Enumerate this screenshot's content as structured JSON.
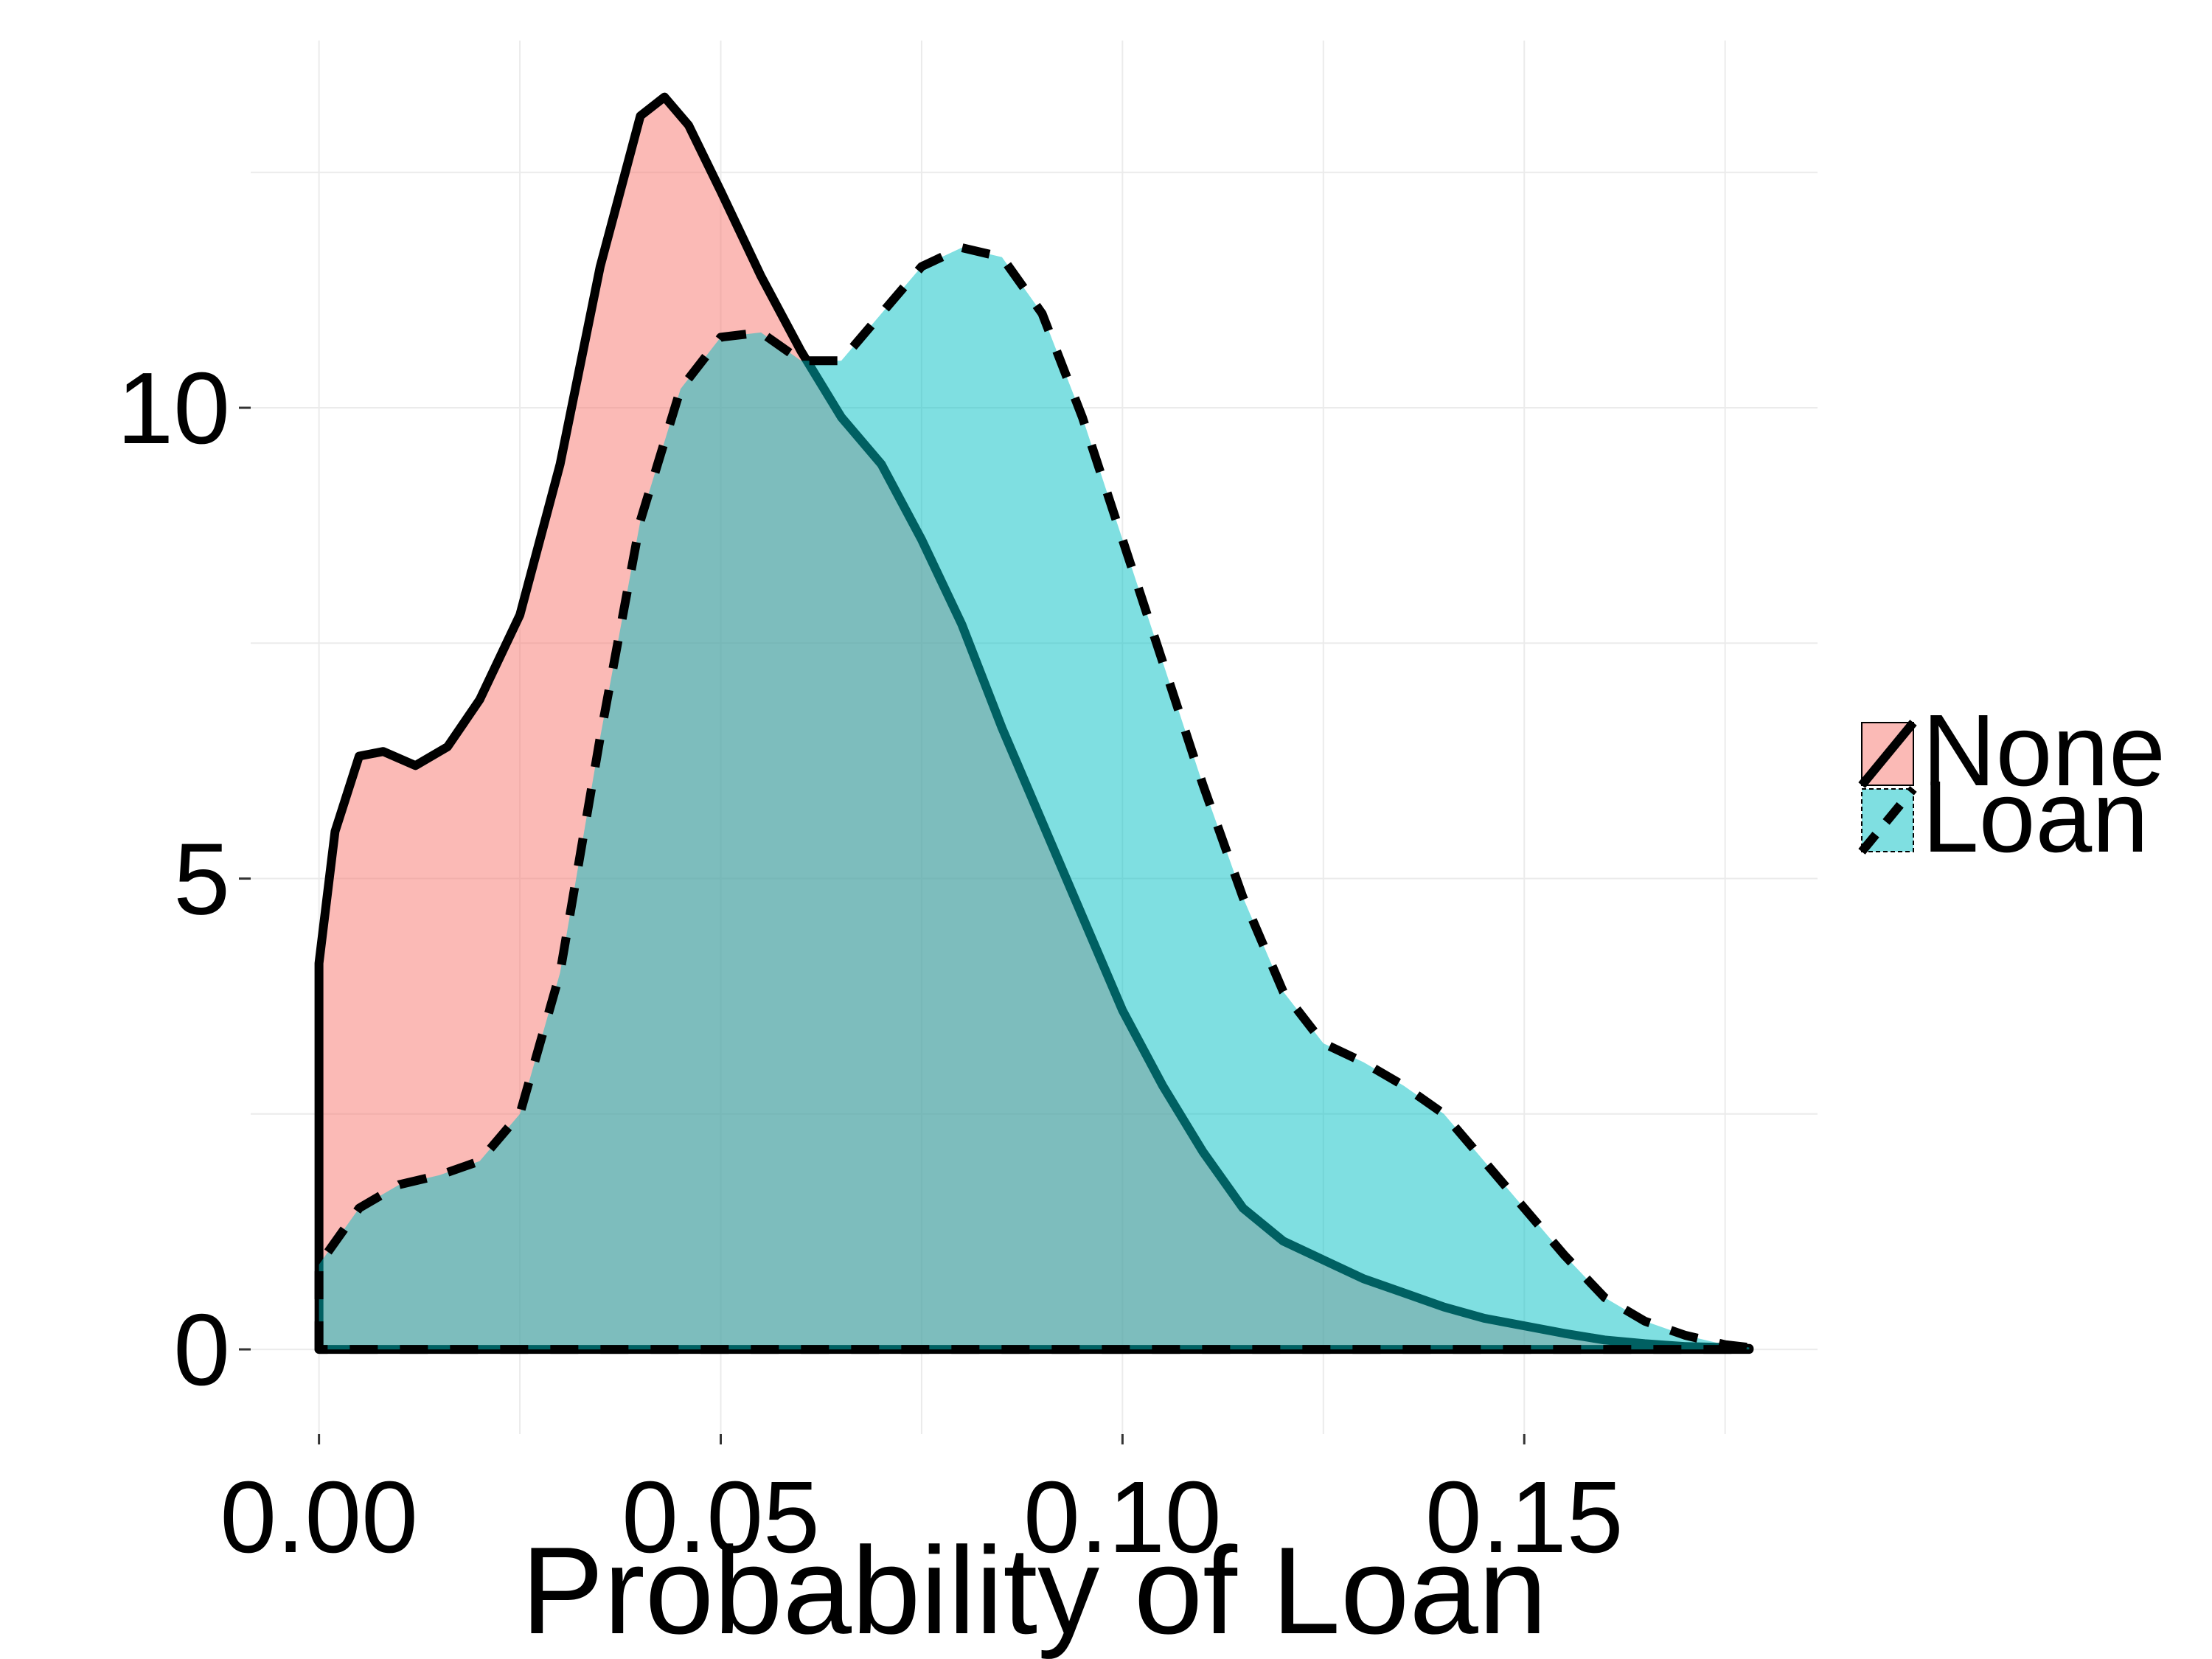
{
  "chart_data": {
    "type": "area",
    "title": "",
    "xlabel": "Probability of Loan",
    "ylabel": "",
    "xlim": [
      -0.0085,
      0.1865
    ],
    "ylim": [
      -0.9,
      13.9
    ],
    "x_ticks": [
      0.0,
      0.05,
      0.1,
      0.15
    ],
    "x_tick_labels": [
      "0.00",
      "0.05",
      "0.10",
      "0.15"
    ],
    "y_ticks": [
      0,
      5,
      10
    ],
    "y_tick_labels": [
      "0",
      "5",
      "10"
    ],
    "grid": true,
    "legend_position": "right",
    "series": [
      {
        "name": "None",
        "fill_color": "#F8766D",
        "line_style": "solid",
        "points": [
          [
            0.0,
            4.1
          ],
          [
            0.002,
            5.5
          ],
          [
            0.005,
            6.3
          ],
          [
            0.008,
            6.35
          ],
          [
            0.012,
            6.2
          ],
          [
            0.016,
            6.4
          ],
          [
            0.02,
            6.9
          ],
          [
            0.025,
            7.8
          ],
          [
            0.03,
            9.4
          ],
          [
            0.035,
            11.5
          ],
          [
            0.04,
            13.1
          ],
          [
            0.043,
            13.3
          ],
          [
            0.046,
            13.0
          ],
          [
            0.05,
            12.3
          ],
          [
            0.055,
            11.4
          ],
          [
            0.06,
            10.6
          ],
          [
            0.065,
            9.9
          ],
          [
            0.07,
            9.4
          ],
          [
            0.075,
            8.6
          ],
          [
            0.08,
            7.7
          ],
          [
            0.085,
            6.6
          ],
          [
            0.09,
            5.6
          ],
          [
            0.095,
            4.6
          ],
          [
            0.1,
            3.6
          ],
          [
            0.105,
            2.8
          ],
          [
            0.11,
            2.1
          ],
          [
            0.115,
            1.5
          ],
          [
            0.12,
            1.15
          ],
          [
            0.125,
            0.95
          ],
          [
            0.13,
            0.75
          ],
          [
            0.135,
            0.6
          ],
          [
            0.14,
            0.45
          ],
          [
            0.145,
            0.33
          ],
          [
            0.15,
            0.25
          ],
          [
            0.155,
            0.17
          ],
          [
            0.16,
            0.1
          ],
          [
            0.165,
            0.06
          ],
          [
            0.17,
            0.03
          ],
          [
            0.175,
            0.02
          ],
          [
            0.178,
            0.01
          ]
        ]
      },
      {
        "name": "Loan",
        "fill_color": "#00BFC4",
        "line_style": "dashed",
        "points": [
          [
            0.0,
            0.9
          ],
          [
            0.005,
            1.5
          ],
          [
            0.01,
            1.75
          ],
          [
            0.015,
            1.85
          ],
          [
            0.02,
            2.0
          ],
          [
            0.025,
            2.5
          ],
          [
            0.03,
            4.0
          ],
          [
            0.035,
            6.5
          ],
          [
            0.04,
            8.8
          ],
          [
            0.045,
            10.2
          ],
          [
            0.05,
            10.75
          ],
          [
            0.055,
            10.8
          ],
          [
            0.06,
            10.5
          ],
          [
            0.065,
            10.5
          ],
          [
            0.07,
            11.0
          ],
          [
            0.075,
            11.5
          ],
          [
            0.08,
            11.7
          ],
          [
            0.085,
            11.6
          ],
          [
            0.09,
            11.0
          ],
          [
            0.095,
            9.9
          ],
          [
            0.1,
            8.6
          ],
          [
            0.105,
            7.3
          ],
          [
            0.11,
            6.0
          ],
          [
            0.115,
            4.8
          ],
          [
            0.12,
            3.8
          ],
          [
            0.125,
            3.25
          ],
          [
            0.13,
            3.05
          ],
          [
            0.135,
            2.8
          ],
          [
            0.14,
            2.5
          ],
          [
            0.145,
            2.0
          ],
          [
            0.15,
            1.5
          ],
          [
            0.155,
            1.0
          ],
          [
            0.16,
            0.55
          ],
          [
            0.165,
            0.3
          ],
          [
            0.17,
            0.15
          ],
          [
            0.175,
            0.05
          ],
          [
            0.178,
            0.02
          ]
        ]
      }
    ]
  }
}
